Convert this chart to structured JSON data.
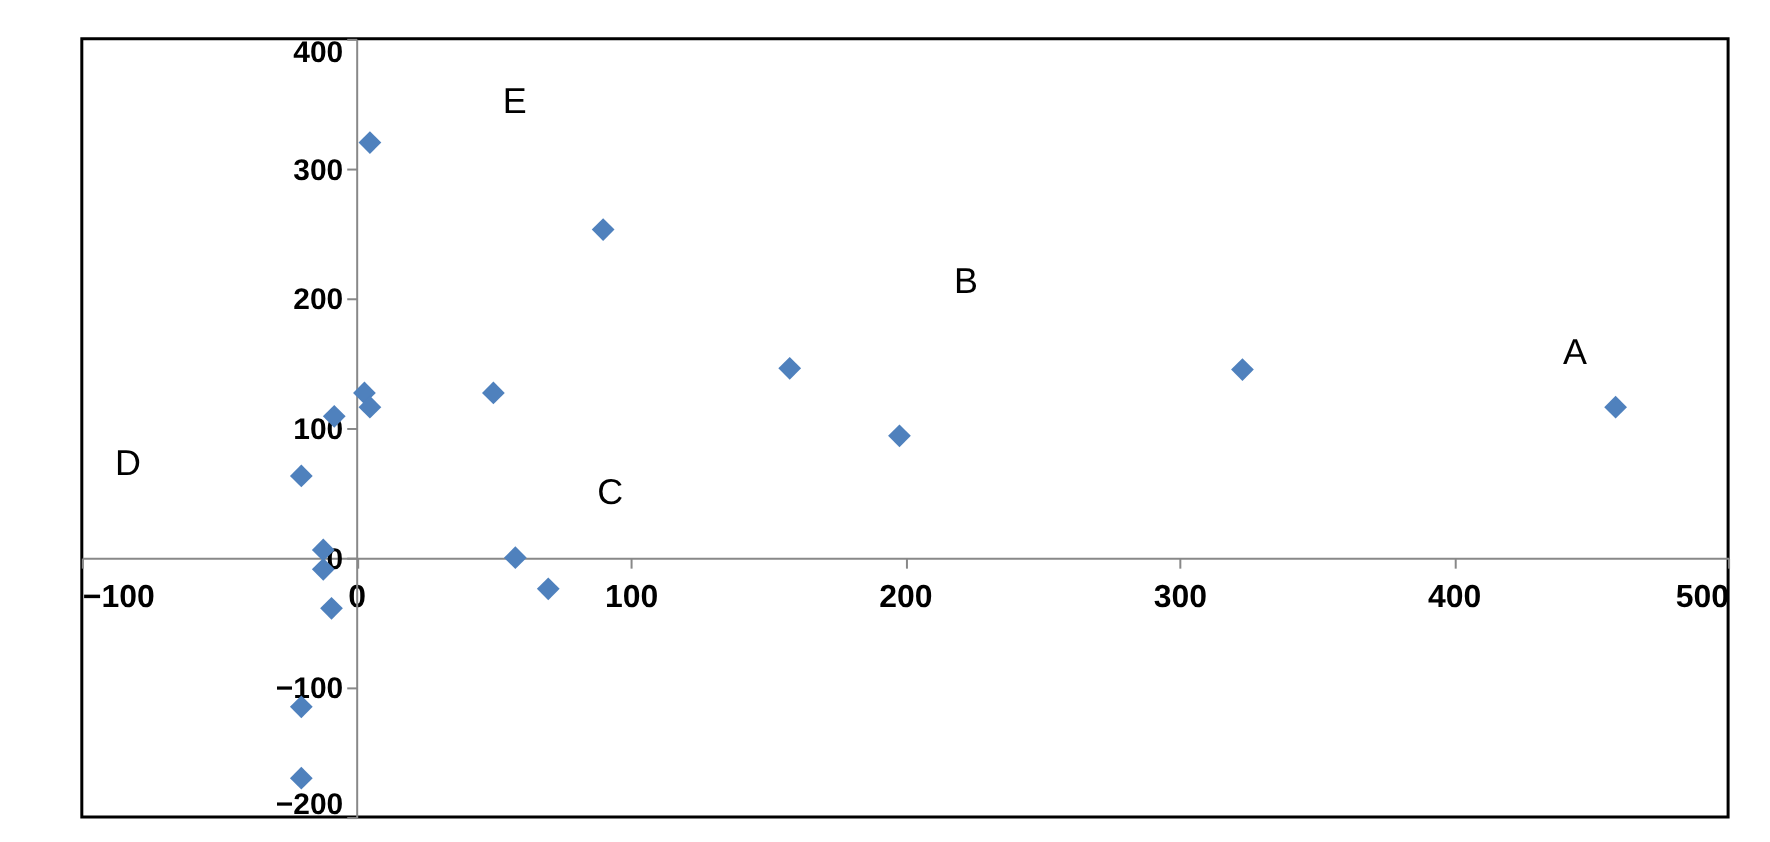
{
  "chart_data": {
    "type": "scatter",
    "marker": "diamond",
    "grid": false,
    "legend": false,
    "x": [
      5,
      90,
      158,
      198,
      323,
      459,
      50,
      58,
      70,
      3,
      5,
      -8,
      -20,
      -12,
      -12,
      -9,
      -20,
      -20
    ],
    "series": [
      {
        "color": "#4f81bd",
        "values": [
          320,
          253,
          146,
          94,
          145,
          116,
          127,
          0,
          -24,
          127,
          116,
          109,
          63,
          6,
          -9,
          -39,
          -115,
          -170
        ]
      }
    ],
    "xlim": [
      -100,
      500
    ],
    "xticks": [
      -100,
      0,
      100,
      200,
      300,
      400,
      500
    ],
    "ylim": [
      -200,
      400
    ],
    "yticks": [
      -200,
      -100,
      0,
      100,
      200,
      300,
      400
    ],
    "annotations": [
      "E",
      "B",
      "A",
      "C",
      "D"
    ]
  }
}
